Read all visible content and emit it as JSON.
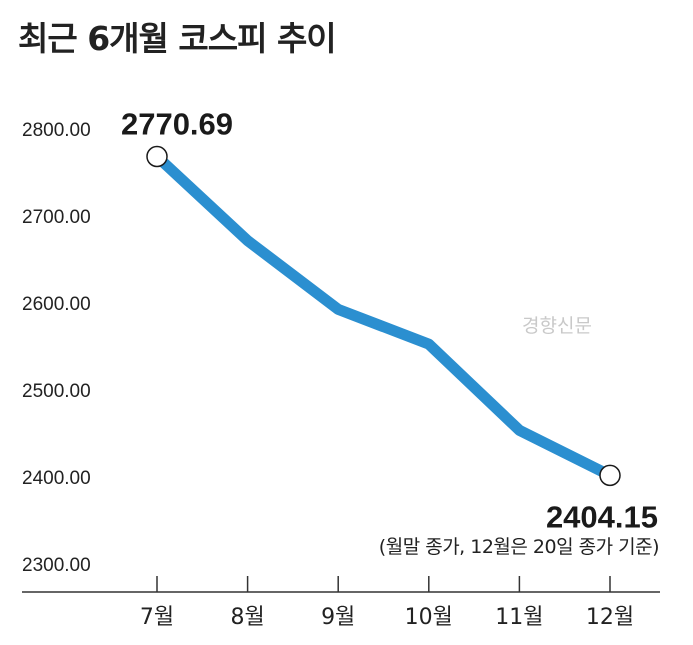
{
  "colors": {
    "line": "#2b8fd0",
    "text": "#222222",
    "axis": "#333333",
    "marker_fill": "#ffffff",
    "watermark": "#c9c9c9"
  },
  "chart_data": {
    "type": "line",
    "title": "최근 6개월 코스피 추이",
    "categories": [
      "7월",
      "8월",
      "9월",
      "10월",
      "11월",
      "12월"
    ],
    "series": [
      {
        "values": [
          2770.69,
          2674,
          2595,
          2555,
          2456,
          2404.15
        ]
      }
    ],
    "ylim": [
      2300,
      2800
    ],
    "y_ticks": [
      "2800.00",
      "2700.00",
      "2600.00",
      "2500.00",
      "2400.00",
      "2300.00"
    ],
    "data_labels": [
      {
        "index": 0,
        "text": "2770.69"
      },
      {
        "index": 5,
        "text": "2404.15"
      }
    ],
    "note": "(월말 종가, 12월은 20일 종가 기준)",
    "watermark": "경향신문",
    "grid": false
  }
}
